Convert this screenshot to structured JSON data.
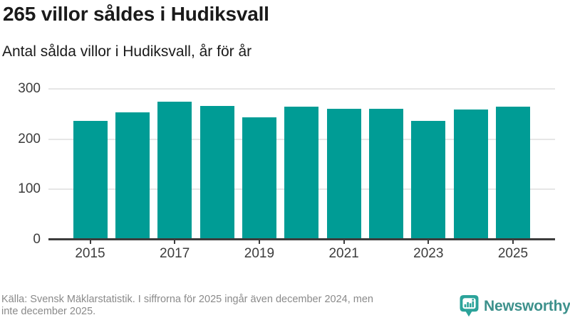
{
  "chart_data": {
    "type": "bar",
    "title": "265 villor såldes i Hudiksvall",
    "subtitle": "Antal sålda villor i Hudiksvall, år för år",
    "categories": [
      2015,
      2016,
      2017,
      2018,
      2019,
      2020,
      2021,
      2022,
      2023,
      2024,
      2025
    ],
    "values": [
      236,
      253,
      274,
      266,
      244,
      264,
      261,
      261,
      236,
      259,
      265
    ],
    "xlabel": "",
    "ylabel": "",
    "ylim": [
      0,
      300
    ],
    "yticks": [
      0,
      100,
      200,
      300
    ],
    "xticks_every": 2,
    "grid": true,
    "legend": false,
    "bar_color": "#009C95"
  },
  "footer": {
    "source_line1": "Källa: Svensk Mäklarstatistik. I siffrorna för 2025 ingår även december 2024, men",
    "source_line2": "inte december 2025.",
    "brand": "Newsworthy"
  },
  "colors": {
    "bar": "#009C95",
    "grid": "#E6E6E6",
    "axis": "#3C3C3C",
    "heading_text": "#1A1A1A",
    "muted_text": "#8A8A8A",
    "brand_icon": "#2BA39A",
    "brand_text": "#3D918C"
  }
}
